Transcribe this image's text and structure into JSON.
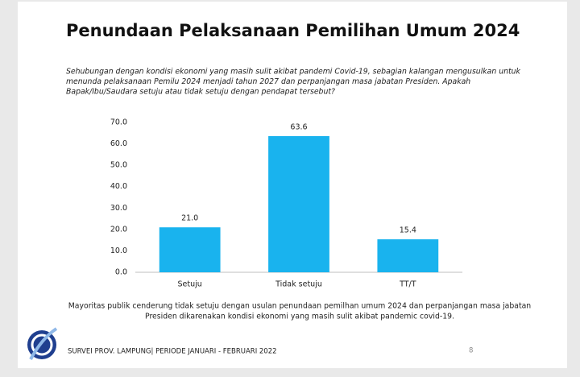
{
  "chart_data": {
    "type": "bar",
    "title": "Penundaan Pelaksanaan Pemilihan Umum 2024",
    "subtitle": [
      "Sehubungan dengan kondisi ekonomi yang masih sulit akibat pandemi Covid-19, sebagian kalangan mengusulkan untuk",
      "menunda pelaksanaan Pemilu 2024 menjadi tahun 2027 dan perpanjangan masa jabatan Presiden. Apakah",
      "Bapak/Ibu/Saudara setuju atau tidak setuju dengan pendapat tersebut?"
    ],
    "categories": [
      "Setuju",
      "Tidak setuju",
      "TT/T"
    ],
    "values": [
      21.0,
      63.6,
      15.4
    ],
    "value_labels": [
      "21.0",
      "63.6",
      "15.4"
    ],
    "color": "#19b3ee",
    "ylim": [
      0,
      70
    ],
    "yticks": [
      {
        "value": 0,
        "label": "0.0"
      },
      {
        "value": 10,
        "label": "10.0"
      },
      {
        "value": 20,
        "label": "20.0"
      },
      {
        "value": 30,
        "label": "30.0"
      },
      {
        "value": 40,
        "label": "40.0"
      },
      {
        "value": 50,
        "label": "50.0"
      },
      {
        "value": 60,
        "label": "60.0"
      },
      {
        "value": 70,
        "label": "70.0"
      }
    ],
    "grid": false,
    "caption": [
      "Mayoritas publik cenderung tidak setuju dengan usulan penundaan pemilhan umum 2024 dan perpanjangan masa jabatan",
      "Presiden dikarenakan kondisi ekonomi yang masih sulit akibat pandemic covid-19."
    ],
    "footer": "SURVEI PROV. LAMPUNG| PERIODE JANUARI - FEBRUARI 2022",
    "page_number": "8"
  }
}
